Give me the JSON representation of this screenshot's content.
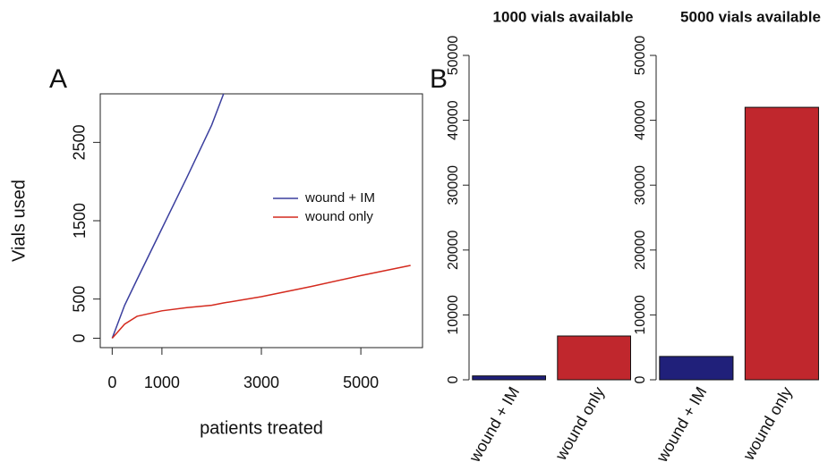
{
  "chart_data": [
    {
      "type": "line",
      "label": "A",
      "xlabel": "patients treated",
      "ylabel": "Vials used",
      "x": [
        0,
        250,
        500,
        1000,
        1500,
        2000,
        2240,
        3000,
        4000,
        5000,
        6000
      ],
      "series": [
        {
          "name": "wound + IM",
          "color": "#3b3f9e",
          "values": [
            0,
            420,
            750,
            1400,
            2050,
            2720,
            3120,
            null,
            null,
            null,
            null
          ]
        },
        {
          "name": "wound only",
          "color": "#d42a1e",
          "values": [
            0,
            180,
            280,
            350,
            390,
            420,
            450,
            530,
            660,
            800,
            930
          ]
        }
      ],
      "xlim": [
        -240,
        6240
      ],
      "xticks": [
        0,
        1000,
        3000,
        5000
      ],
      "ylim": [
        -120,
        3120
      ],
      "yticks": [
        0,
        500,
        1500,
        2500
      ]
    },
    {
      "type": "bar",
      "label": "B",
      "title": "1000 vials available",
      "categories": [
        "wound + IM",
        "wound only"
      ],
      "values": [
        600,
        6750
      ],
      "colors": [
        "#20207a",
        "#c0272d"
      ],
      "ylim": [
        0,
        50000
      ],
      "yticks": [
        0,
        10000,
        20000,
        30000,
        40000,
        50000
      ]
    },
    {
      "type": "bar",
      "title": "5000 vials available",
      "categories": [
        "wound + IM",
        "wound only"
      ],
      "values": [
        3600,
        42000
      ],
      "colors": [
        "#20207a",
        "#c0272d"
      ],
      "ylim": [
        0,
        50000
      ],
      "yticks": [
        0,
        10000,
        20000,
        30000,
        40000,
        50000
      ]
    }
  ]
}
